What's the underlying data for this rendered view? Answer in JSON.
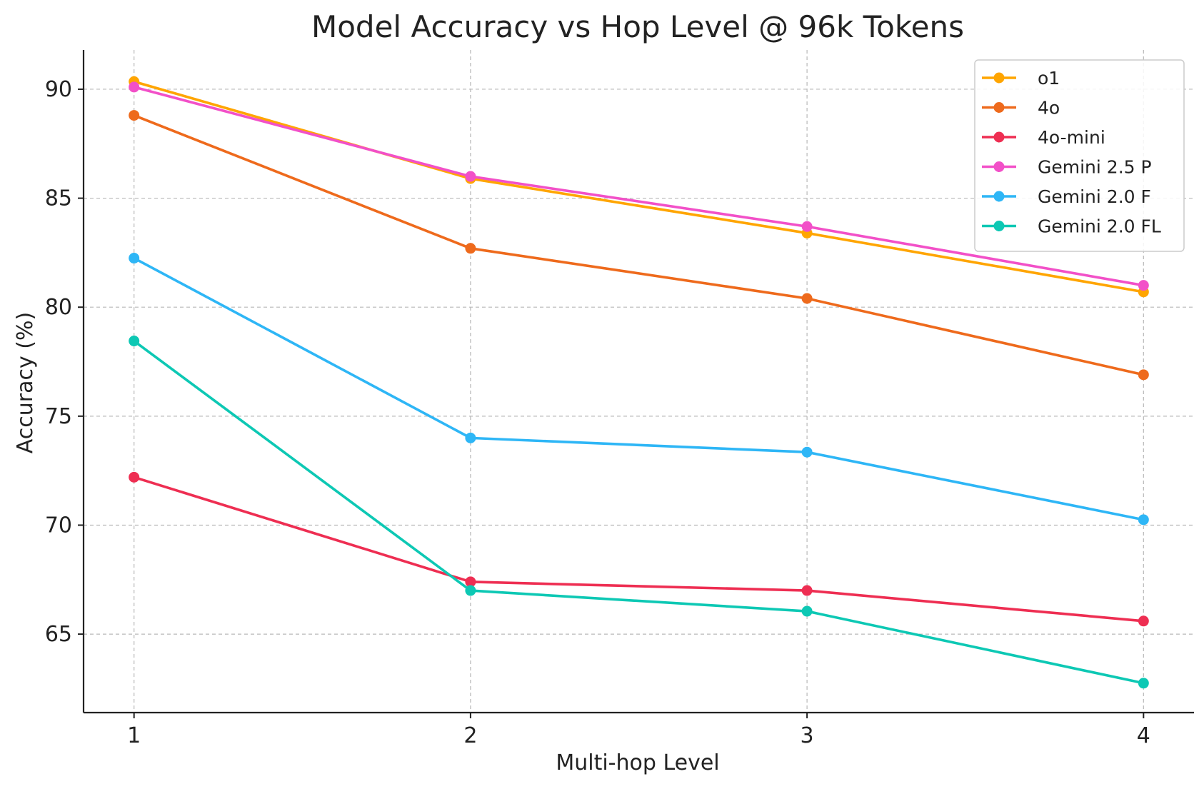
{
  "chart_data": {
    "type": "line",
    "title": "Model Accuracy vs Hop Level @ 96k Tokens",
    "xlabel": "Multi-hop Level",
    "ylabel": "Accuracy (%)",
    "x": [
      1,
      2,
      3,
      4
    ],
    "xticks": [
      "1",
      "2",
      "3",
      "4"
    ],
    "yticks": [
      "65",
      "70",
      "75",
      "80",
      "85",
      "90"
    ],
    "ytick_values": [
      65,
      70,
      75,
      80,
      85,
      90
    ],
    "xlim": [
      0.85,
      4.15
    ],
    "ylim": [
      61.4,
      91.8
    ],
    "grid": true,
    "legend_position": "top-right",
    "series": [
      {
        "name": "o1",
        "color": "#FFA500",
        "values": [
          90.35,
          85.9,
          83.4,
          80.7
        ]
      },
      {
        "name": "4o",
        "color": "#EE6A1C",
        "values": [
          88.8,
          82.7,
          80.4,
          76.9
        ]
      },
      {
        "name": "4o-mini",
        "color": "#EE2E52",
        "values": [
          72.2,
          67.4,
          67.0,
          65.6
        ]
      },
      {
        "name": "Gemini 2.5 P",
        "color": "#F250C8",
        "values": [
          90.1,
          86.0,
          83.7,
          81.0
        ]
      },
      {
        "name": "Gemini 2.0 F",
        "color": "#2EB6F6",
        "values": [
          82.25,
          74.0,
          73.35,
          70.25
        ]
      },
      {
        "name": "Gemini 2.0 FL",
        "color": "#0DC8B4",
        "values": [
          78.45,
          67.0,
          66.05,
          62.75
        ]
      }
    ]
  }
}
